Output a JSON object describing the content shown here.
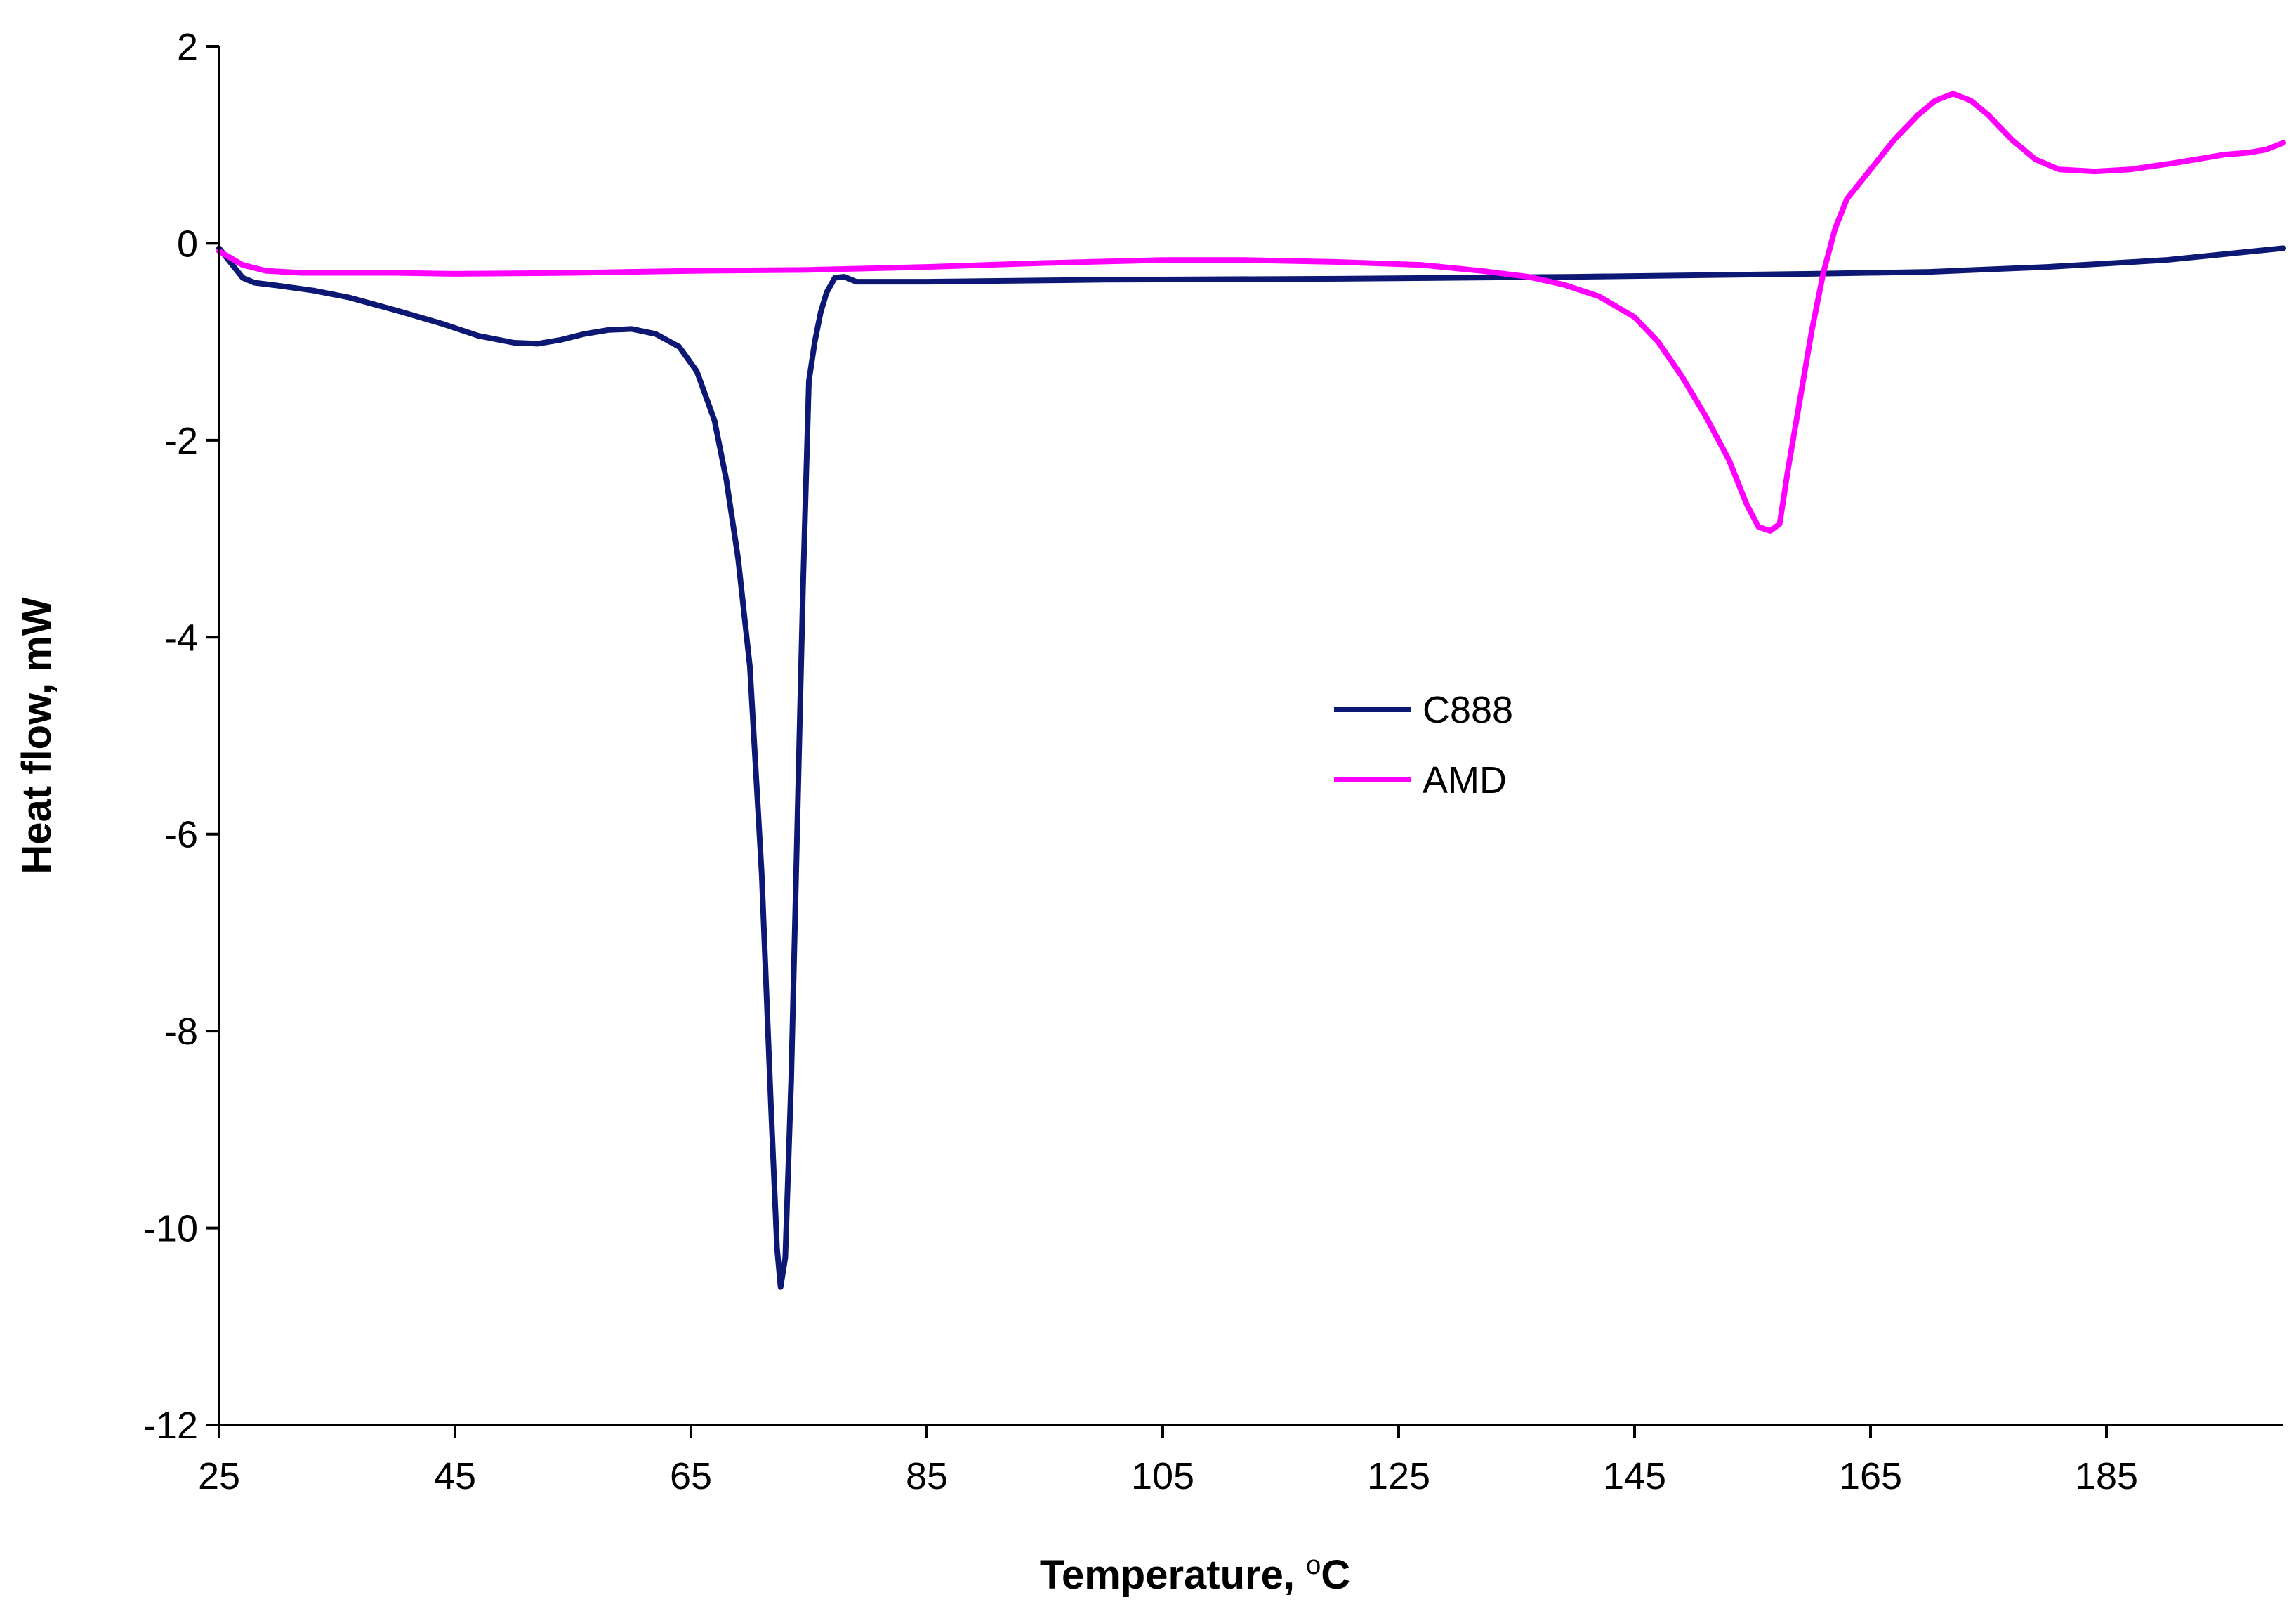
{
  "chart_data": {
    "type": "line",
    "title": "",
    "xlabel": "Temperature, ",
    "xlabel_sup": "o",
    "xlabel_tail": "C",
    "ylabel": "Heat flow, mW",
    "xlim": [
      25,
      200
    ],
    "ylim": [
      -12,
      2
    ],
    "x_ticks": [
      25,
      45,
      65,
      85,
      105,
      125,
      145,
      165,
      185
    ],
    "y_ticks": [
      2,
      0,
      -2,
      -4,
      -6,
      -8,
      -10,
      -12
    ],
    "x_tick_labels": [
      "25",
      "45",
      "65",
      "85",
      "105",
      "125",
      "145",
      "165",
      "185"
    ],
    "y_tick_labels": [
      "2",
      "0",
      "-2",
      "-4",
      "-6",
      "-8",
      "-10",
      "-12"
    ],
    "grid": false,
    "legend_position": "center-right",
    "series": [
      {
        "name": "C888",
        "color": "#0d1874",
        "points": [
          [
            25,
            -0.05
          ],
          [
            26,
            -0.2
          ],
          [
            27,
            -0.35
          ],
          [
            28,
            -0.4
          ],
          [
            30,
            -0.43
          ],
          [
            33,
            -0.48
          ],
          [
            36,
            -0.55
          ],
          [
            40,
            -0.68
          ],
          [
            44,
            -0.82
          ],
          [
            47,
            -0.94
          ],
          [
            50,
            -1.01
          ],
          [
            52,
            -1.02
          ],
          [
            54,
            -0.98
          ],
          [
            56,
            -0.92
          ],
          [
            58,
            -0.88
          ],
          [
            60,
            -0.87
          ],
          [
            62,
            -0.92
          ],
          [
            64,
            -1.05
          ],
          [
            65.5,
            -1.3
          ],
          [
            67,
            -1.8
          ],
          [
            68,
            -2.4
          ],
          [
            69,
            -3.2
          ],
          [
            70,
            -4.3
          ],
          [
            71,
            -6.4
          ],
          [
            71.8,
            -8.8
          ],
          [
            72.3,
            -10.2
          ],
          [
            72.6,
            -10.6
          ],
          [
            73,
            -10.3
          ],
          [
            73.5,
            -8.5
          ],
          [
            74,
            -6.0
          ],
          [
            74.5,
            -3.5
          ],
          [
            75,
            -1.4
          ],
          [
            75.5,
            -1.0
          ],
          [
            76,
            -0.7
          ],
          [
            76.5,
            -0.5
          ],
          [
            77.2,
            -0.35
          ],
          [
            78,
            -0.34
          ],
          [
            79,
            -0.39
          ],
          [
            85,
            -0.39
          ],
          [
            100,
            -0.37
          ],
          [
            120,
            -0.36
          ],
          [
            140,
            -0.34
          ],
          [
            160,
            -0.31
          ],
          [
            170,
            -0.29
          ],
          [
            180,
            -0.24
          ],
          [
            190,
            -0.17
          ],
          [
            200,
            -0.05
          ]
        ]
      },
      {
        "name": "AMD",
        "color": "#ff00ff",
        "points": [
          [
            25,
            -0.08
          ],
          [
            27,
            -0.22
          ],
          [
            29,
            -0.28
          ],
          [
            32,
            -0.3
          ],
          [
            40,
            -0.3
          ],
          [
            45,
            -0.31
          ],
          [
            55,
            -0.3
          ],
          [
            65,
            -0.28
          ],
          [
            75,
            -0.27
          ],
          [
            85,
            -0.24
          ],
          [
            95,
            -0.2
          ],
          [
            105,
            -0.17
          ],
          [
            112,
            -0.17
          ],
          [
            120,
            -0.19
          ],
          [
            127,
            -0.22
          ],
          [
            132,
            -0.28
          ],
          [
            136,
            -0.34
          ],
          [
            139,
            -0.42
          ],
          [
            142,
            -0.54
          ],
          [
            145,
            -0.75
          ],
          [
            147,
            -1.0
          ],
          [
            149,
            -1.35
          ],
          [
            151,
            -1.75
          ],
          [
            153,
            -2.2
          ],
          [
            154.5,
            -2.65
          ],
          [
            155.5,
            -2.88
          ],
          [
            156.5,
            -2.92
          ],
          [
            157.3,
            -2.85
          ],
          [
            158,
            -2.3
          ],
          [
            159,
            -1.6
          ],
          [
            160,
            -0.9
          ],
          [
            161,
            -0.3
          ],
          [
            162,
            0.15
          ],
          [
            163,
            0.45
          ],
          [
            165,
            0.75
          ],
          [
            167,
            1.05
          ],
          [
            169,
            1.3
          ],
          [
            170.5,
            1.45
          ],
          [
            172,
            1.52
          ],
          [
            173.5,
            1.45
          ],
          [
            175,
            1.3
          ],
          [
            177,
            1.05
          ],
          [
            179,
            0.85
          ],
          [
            181,
            0.75
          ],
          [
            184,
            0.73
          ],
          [
            187,
            0.75
          ],
          [
            191,
            0.82
          ],
          [
            195,
            0.9
          ],
          [
            197,
            0.92
          ],
          [
            198.5,
            0.95
          ],
          [
            200,
            1.02
          ]
        ]
      }
    ]
  }
}
